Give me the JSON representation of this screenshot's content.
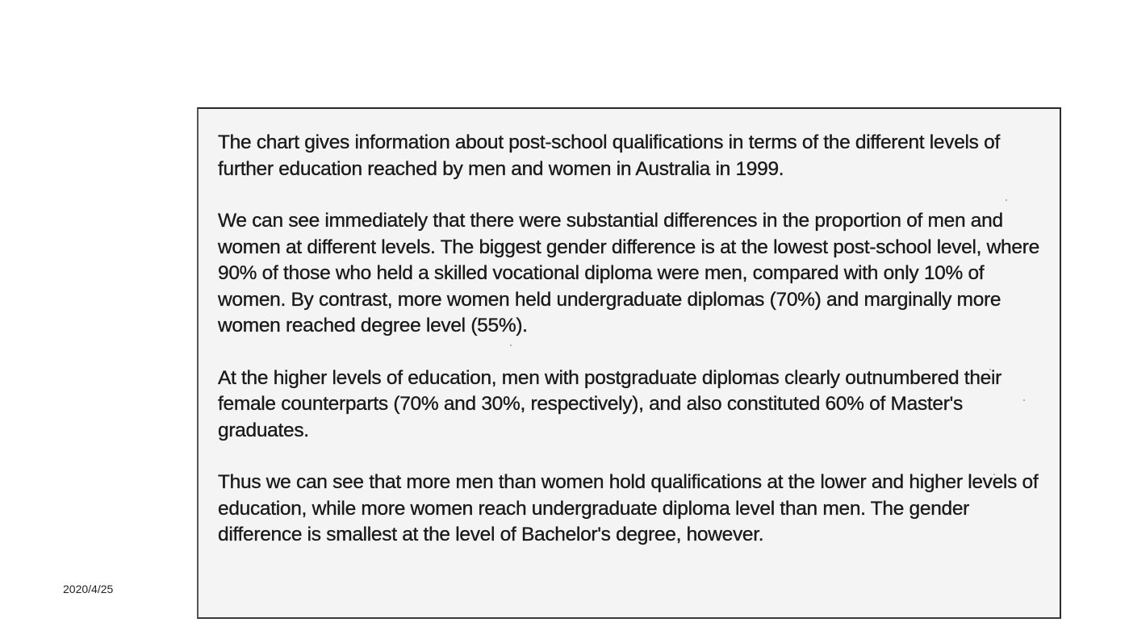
{
  "footer": {
    "date": "2020/4/25"
  },
  "document": {
    "paragraphs": [
      "The chart gives information about post-school qualifications in terms of the different levels of further education reached by men and women in Australia in 1999.",
      "We can see immediately that there were substantial differences in the proportion of men and women at different levels. The biggest gender difference is at the lowest post-school level, where 90% of those who held a skilled vocational diploma were men, compared with only 10% of women. By contrast, more women held undergraduate diplomas (70%) and marginally more women reached degree level (55%).",
      "At the higher levels of education, men with postgraduate diplomas clearly outnumbered their female counterparts (70% and 30%, respectively), and also constituted 60% of Master's graduates.",
      "Thus we can see that more men than women hold qualifications at the lower and higher levels of education, while more women reach undergraduate diploma level than men. The gender difference is smallest at the level of Bachelor's degree, however."
    ]
  }
}
